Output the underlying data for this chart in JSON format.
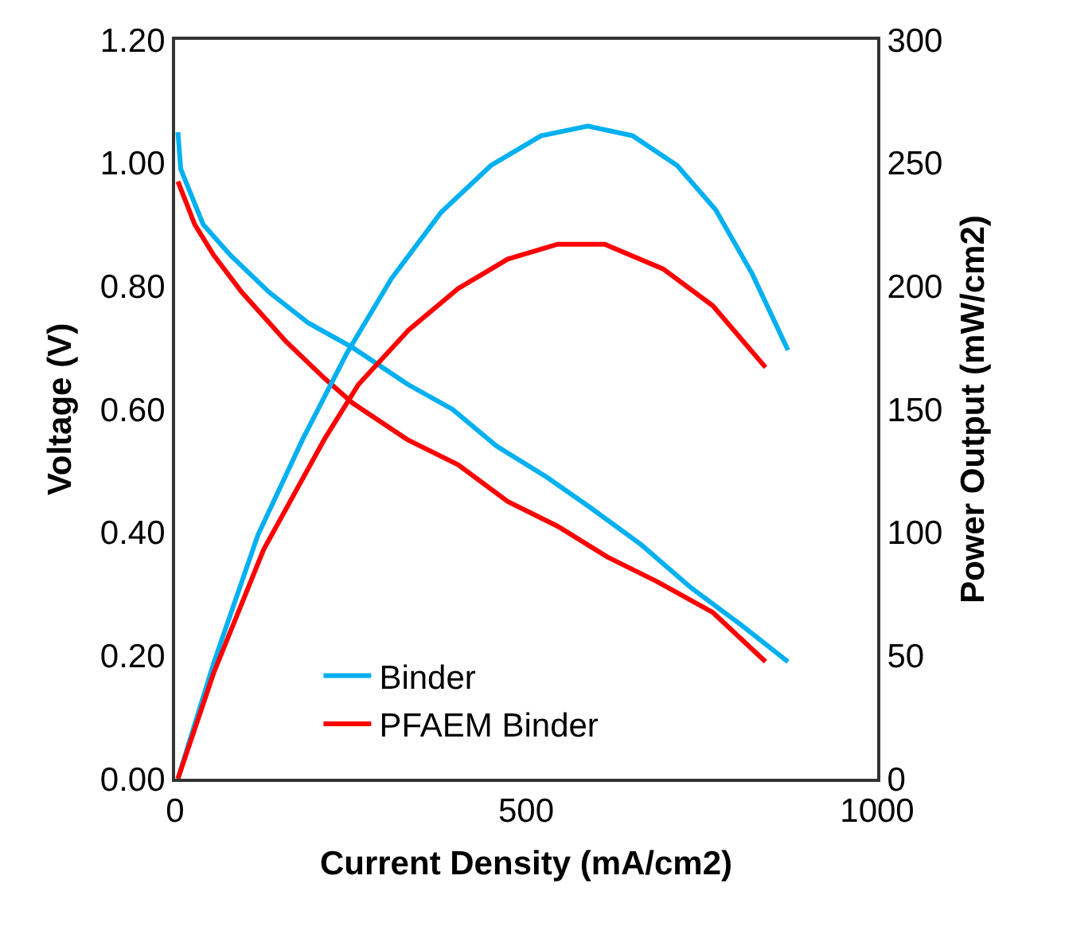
{
  "chart_data": {
    "type": "line",
    "xlabel": "Current Density (mA/cm2)",
    "ylabel": "Voltage (V)",
    "y2label": "Power Output (mW/cm2)",
    "xlim": [
      0,
      1000
    ],
    "xticks": [
      0,
      500,
      1000
    ],
    "ylim": [
      0,
      1.2
    ],
    "yticks": [
      {
        "value": 0,
        "label": "0.00"
      },
      {
        "value": 0.2,
        "label": "0.20"
      },
      {
        "value": 0.4,
        "label": "0.40"
      },
      {
        "value": 0.6,
        "label": "0.60"
      },
      {
        "value": 0.8,
        "label": "0.80"
      },
      {
        "value": 1,
        "label": "1.00"
      },
      {
        "value": 1.2,
        "label": "1.20"
      }
    ],
    "y2lim": [
      0,
      300
    ],
    "y2ticks": [
      0,
      50,
      100,
      150,
      200,
      250,
      300
    ],
    "grid": false,
    "legend": "bottom",
    "marker": "none",
    "line_style": "solid",
    "series": [
      {
        "name": "Binder",
        "color": "#00b0f0",
        "x": [
          4,
          8,
          40,
          79,
          134,
          190,
          253,
          332,
          395,
          458,
          529,
          592,
          664,
          735,
          806,
          873
        ],
        "values": [
          1.05,
          0.99,
          0.9,
          0.85,
          0.79,
          0.74,
          0.7,
          0.64,
          0.6,
          0.54,
          0.49,
          0.44,
          0.38,
          0.31,
          0.25,
          0.19
        ]
      },
      {
        "name": "PFAEM Binder",
        "color": "#ff0000",
        "x": [
          4,
          28,
          55,
          95,
          158,
          213,
          253,
          332,
          403,
          474,
          545,
          616,
          687,
          766,
          841
        ],
        "values": [
          0.97,
          0.9,
          0.85,
          0.79,
          0.71,
          0.65,
          0.61,
          0.55,
          0.51,
          0.45,
          0.41,
          0.36,
          0.32,
          0.27,
          0.19
        ]
      },
      {
        "color": "#00b0f0",
        "axis": "y2",
        "x": [
          4,
          55,
          118,
          182,
          245,
          308,
          379,
          450,
          521,
          588,
          652,
          715,
          770,
          822,
          873
        ],
        "values": [
          0,
          47,
          99,
          138,
          173,
          203,
          230,
          249,
          261,
          265,
          261,
          249,
          231,
          205,
          174
        ]
      },
      {
        "color": "#ff0000",
        "axis": "y2",
        "x": [
          4,
          55,
          126,
          213,
          261,
          332,
          403,
          474,
          545,
          612,
          695,
          766,
          841
        ],
        "values": [
          0,
          43,
          93,
          138,
          160,
          182,
          199,
          211,
          217,
          217,
          207,
          192,
          167
        ]
      }
    ]
  }
}
